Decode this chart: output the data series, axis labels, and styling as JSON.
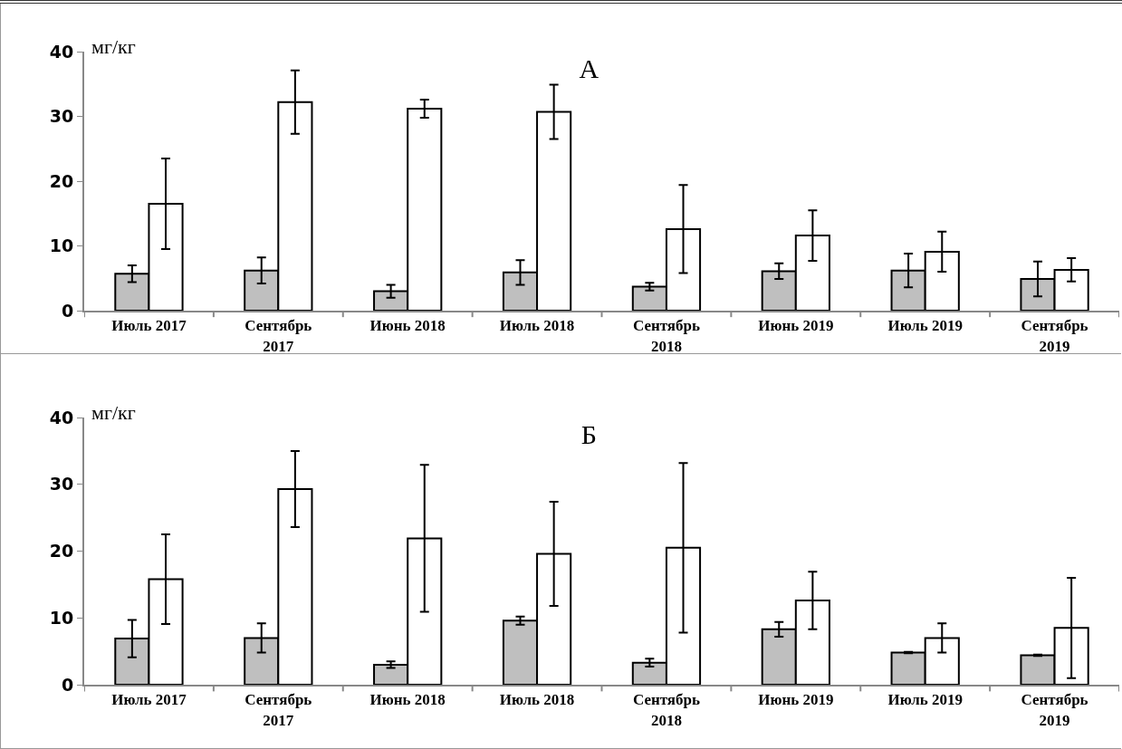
{
  "chart_data": [
    {
      "type": "bar",
      "title": "А",
      "ylabel": "мг/кг",
      "categories": [
        "Июль 2017",
        "Сентябрь 2017",
        "Июнь 2018",
        "Июль 2018",
        "Сентябрь 2018",
        "Июнь 2019",
        "Июль 2019",
        "Сентябрь 2019"
      ],
      "series": [
        {
          "color": "#bfbfbf",
          "values": [
            5.7,
            6.2,
            3.0,
            5.9,
            3.7,
            6.1,
            6.2,
            4.9
          ],
          "errors": [
            1.3,
            2.0,
            1.0,
            1.9,
            0.6,
            1.2,
            2.6,
            2.7
          ]
        },
        {
          "color": "#ffffff",
          "values": [
            16.5,
            32.2,
            31.2,
            30.7,
            12.6,
            11.6,
            9.1,
            6.3
          ],
          "errors": [
            7.0,
            4.9,
            1.4,
            4.2,
            6.8,
            3.9,
            3.1,
            1.8
          ]
        }
      ],
      "ylim": [
        0,
        40
      ],
      "yticks": [
        0,
        10,
        20,
        30,
        40
      ],
      "grid": false
    },
    {
      "type": "bar",
      "title": "Б",
      "ylabel": "мг/кг",
      "categories": [
        "Июль 2017",
        "Сентябрь 2017",
        "Июнь 2018",
        "Июль 2018",
        "Сентябрь 2018",
        "Июнь 2019",
        "Июль 2019",
        "Сентябрь 2019"
      ],
      "series": [
        {
          "color": "#bfbfbf",
          "values": [
            6.9,
            7.0,
            3.0,
            9.6,
            3.3,
            8.3,
            4.8,
            4.4
          ],
          "errors": [
            2.8,
            2.2,
            0.5,
            0.6,
            0.6,
            1.1,
            0.1,
            0.1
          ]
        },
        {
          "color": "#ffffff",
          "values": [
            15.8,
            29.3,
            21.9,
            19.6,
            20.5,
            12.6,
            7.0,
            8.5
          ],
          "errors": [
            6.7,
            5.7,
            11.0,
            7.8,
            12.7,
            4.3,
            2.2,
            7.5
          ]
        }
      ],
      "ylim": [
        0,
        40
      ],
      "yticks": [
        0,
        10,
        20,
        30,
        40
      ],
      "grid": false
    }
  ]
}
